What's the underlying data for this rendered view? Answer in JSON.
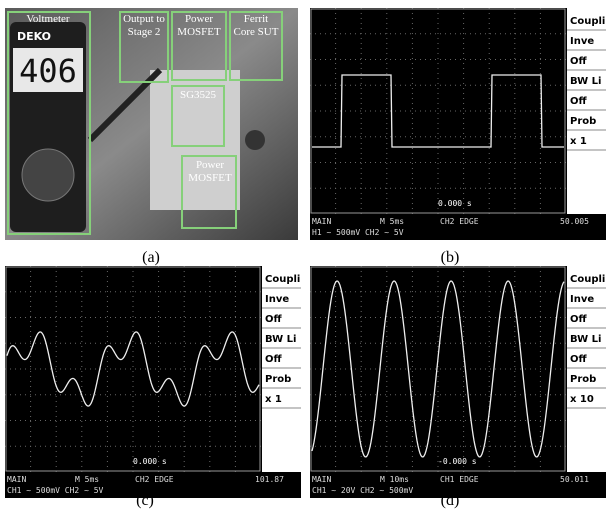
{
  "figure": {
    "photo": {
      "caption": "(a)",
      "meter_brand": "DEKO",
      "meter_reading": "406",
      "labels": [
        {
          "lines": [
            "Voltmeter"
          ]
        },
        {
          "lines": [
            "Output to",
            "Stage 2"
          ]
        },
        {
          "lines": [
            "Power",
            "MOSFET"
          ]
        },
        {
          "lines": [
            "Ferrit",
            "Core SUT"
          ]
        },
        {
          "lines": [
            "SG3525"
          ]
        },
        {
          "lines": [
            "Power",
            "MOSFET"
          ]
        }
      ]
    },
    "scopes": [
      {
        "caption": "(b)",
        "menu": [
          "Coupli",
          "Inve",
          "Off",
          "BW Li",
          "Off",
          "Prob",
          "x 1"
        ],
        "time": "0.000 s",
        "status": [
          "MAIN",
          "M 5ms",
          "CH2 EDGE",
          "50.005"
        ],
        "channels": "H1 ~ 500mV   CH2 ~ 5V"
      },
      {
        "caption": "(c)",
        "menu": [
          "Coupli",
          "Inve",
          "Off",
          "BW Li",
          "Off",
          "Prob",
          "x 1"
        ],
        "time": "0.000 s",
        "status": [
          "MAIN",
          "M 5ms",
          "CH2 EDGE",
          "101.87"
        ],
        "channels": "CH1 ~ 500mV   CH2 ~ 5V"
      },
      {
        "caption": "(d)",
        "menu": [
          "Coupli",
          "Inve",
          "Off",
          "BW Li",
          "Off",
          "Prob",
          "x 10"
        ],
        "time": "-0.000 s",
        "status": [
          "MAIN",
          "M 10ms",
          "CH1 EDGE",
          "50.011"
        ],
        "channels": "CH1 ~ 20V   CH2 ~ 500mV"
      }
    ]
  }
}
